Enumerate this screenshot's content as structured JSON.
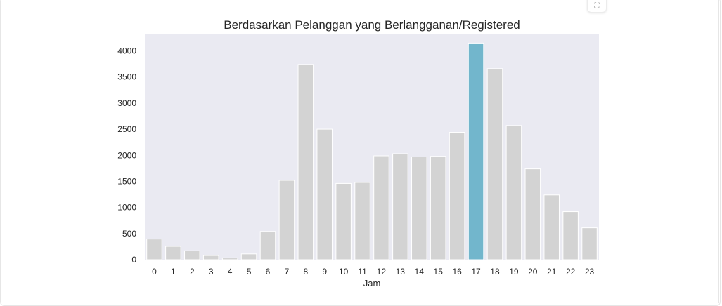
{
  "chart_data": {
    "type": "bar",
    "title": "Berdasarkan Pelanggan yang Berlangganan/Registered",
    "xlabel": "Jam",
    "ylabel": "",
    "categories": [
      "0",
      "1",
      "2",
      "3",
      "4",
      "5",
      "6",
      "7",
      "8",
      "9",
      "10",
      "11",
      "12",
      "13",
      "14",
      "15",
      "16",
      "17",
      "18",
      "19",
      "20",
      "21",
      "22",
      "23"
    ],
    "values": [
      395,
      255,
      170,
      80,
      35,
      110,
      540,
      1520,
      3740,
      2500,
      1460,
      1480,
      1990,
      2030,
      1970,
      1980,
      2440,
      4150,
      3660,
      2570,
      1740,
      1240,
      920,
      610
    ],
    "yticks": [
      0,
      500,
      1000,
      1500,
      2000,
      2500,
      3000,
      3500,
      4000
    ],
    "ylim": [
      0,
      4330
    ],
    "grid": false,
    "highlight_index": 17,
    "colors": {
      "bar": "#d3d3d3",
      "highlight": "#72b6cc",
      "plot_background": "#eaeaf2",
      "text": "#262626"
    }
  },
  "ui": {
    "expand_icon": "expand-icon",
    "expand_glyph": "⛶"
  }
}
